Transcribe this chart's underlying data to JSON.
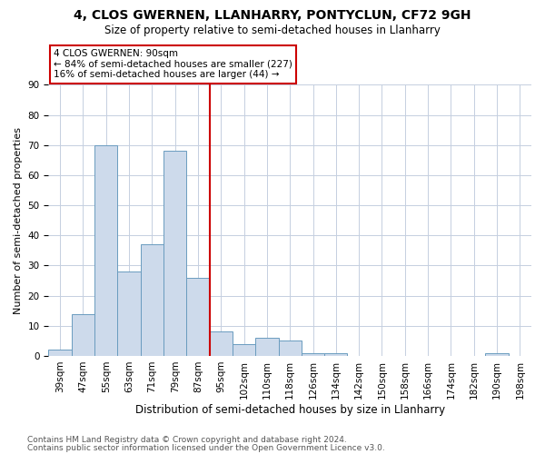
{
  "title": "4, CLOS GWERNEN, LLANHARRY, PONTYCLUN, CF72 9GH",
  "subtitle": "Size of property relative to semi-detached houses in Llanharry",
  "xlabel": "Distribution of semi-detached houses by size in Llanharry",
  "ylabel": "Number of semi-detached properties",
  "categories": [
    "39sqm",
    "47sqm",
    "55sqm",
    "63sqm",
    "71sqm",
    "79sqm",
    "87sqm",
    "95sqm",
    "102sqm",
    "110sqm",
    "118sqm",
    "126sqm",
    "134sqm",
    "142sqm",
    "150sqm",
    "158sqm",
    "166sqm",
    "174sqm",
    "182sqm",
    "190sqm",
    "198sqm"
  ],
  "values": [
    2,
    14,
    70,
    28,
    37,
    68,
    26,
    8,
    4,
    6,
    5,
    1,
    1,
    0,
    0,
    0,
    0,
    0,
    0,
    1,
    0
  ],
  "bar_color": "#cddaeb",
  "bar_edge_color": "#6a9cbf",
  "grid_color": "#c5cfe0",
  "vline_x_index": 6.5,
  "vline_color": "#cc0000",
  "annotation_line1": "4 CLOS GWERNEN: 90sqm",
  "annotation_line2": "← 84% of semi-detached houses are smaller (227)",
  "annotation_line3": "16% of semi-detached houses are larger (44) →",
  "annotation_box_color": "#cc0000",
  "ylim": [
    0,
    90
  ],
  "yticks": [
    0,
    10,
    20,
    30,
    40,
    50,
    60,
    70,
    80,
    90
  ],
  "footer1": "Contains HM Land Registry data © Crown copyright and database right 2024.",
  "footer2": "Contains public sector information licensed under the Open Government Licence v3.0.",
  "bg_color": "#ffffff",
  "title_fontsize": 10,
  "subtitle_fontsize": 8.5,
  "ylabel_fontsize": 8,
  "xlabel_fontsize": 8.5,
  "tick_fontsize": 7.5,
  "annotation_fontsize": 7.5,
  "footer_fontsize": 6.5
}
